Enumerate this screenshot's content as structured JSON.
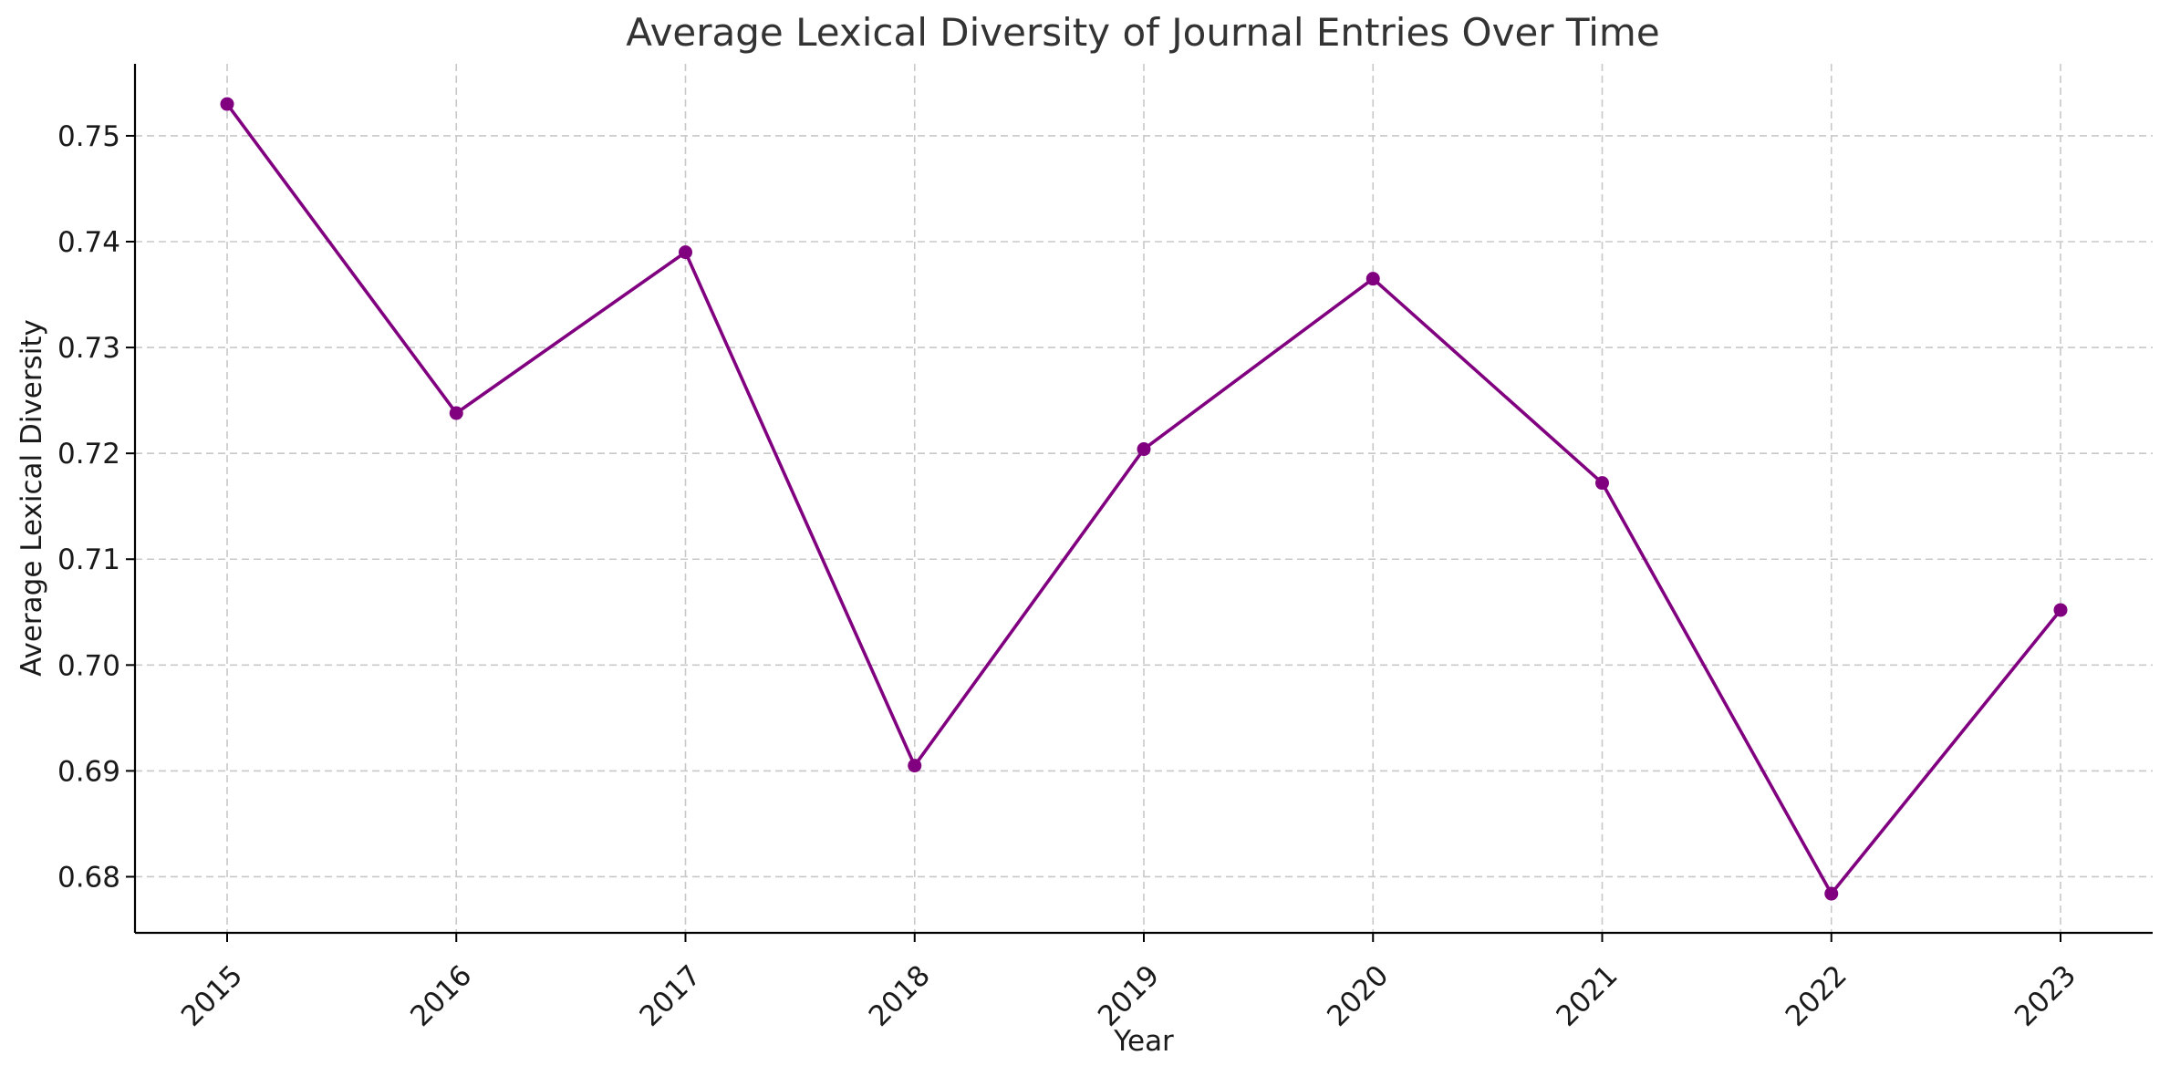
{
  "chart_data": {
    "type": "line",
    "title": "Average Lexical Diversity of Journal Entries Over Time",
    "xlabel": "Year",
    "ylabel": "Average Lexical Diversity",
    "categories": [
      "2015",
      "2016",
      "2017",
      "2018",
      "2019",
      "2020",
      "2021",
      "2022",
      "2023"
    ],
    "series": [
      {
        "name": "Average Lexical Diversity",
        "values": [
          0.753,
          0.7238,
          0.739,
          0.6905,
          0.7204,
          0.7365,
          0.7172,
          0.6784,
          0.7052
        ],
        "color": "#800080",
        "marker": "circle"
      }
    ],
    "yticks": [
      "0.68",
      "0.69",
      "0.70",
      "0.71",
      "0.72",
      "0.73",
      "0.74",
      "0.75"
    ],
    "ytick_values": [
      0.68,
      0.69,
      0.7,
      0.71,
      0.72,
      0.73,
      0.74,
      0.75
    ],
    "ylim": [
      0.6747,
      0.7568
    ],
    "grid": true,
    "legend": "none"
  }
}
